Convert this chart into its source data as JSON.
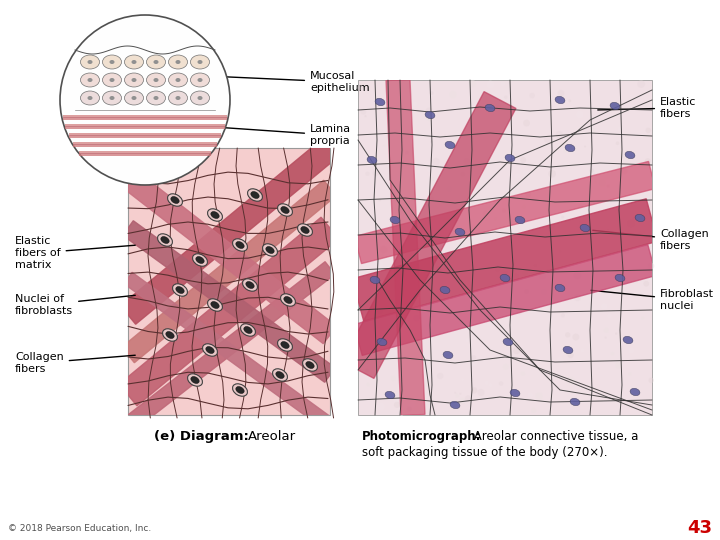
{
  "background_color": "#ffffff",
  "label_fontsize": 8,
  "page_number": "43",
  "copyright": "© 2018 Pearson Education, Inc.",
  "left_caption_bold": "(e) Diagram:",
  "left_caption_normal": "Areolar",
  "right_caption_bold": "Photomicrograph:",
  "right_caption_normal": "Areolar connective tissue, a\nsoft packaging tissue of the body (270×).",
  "diagram_bg": "#f5cece",
  "photo_bg_light": "#f2e0e4",
  "photo_bg": "#e8d0d5",
  "inset_bg": "#fafafa",
  "collagen_color": "#c06070",
  "elastic_color": "#5a3030",
  "nuclei_color": "#303030",
  "photo_collagen": "#d04060",
  "photo_elastic": "#404040",
  "photo_nuclei": "#6060a0"
}
